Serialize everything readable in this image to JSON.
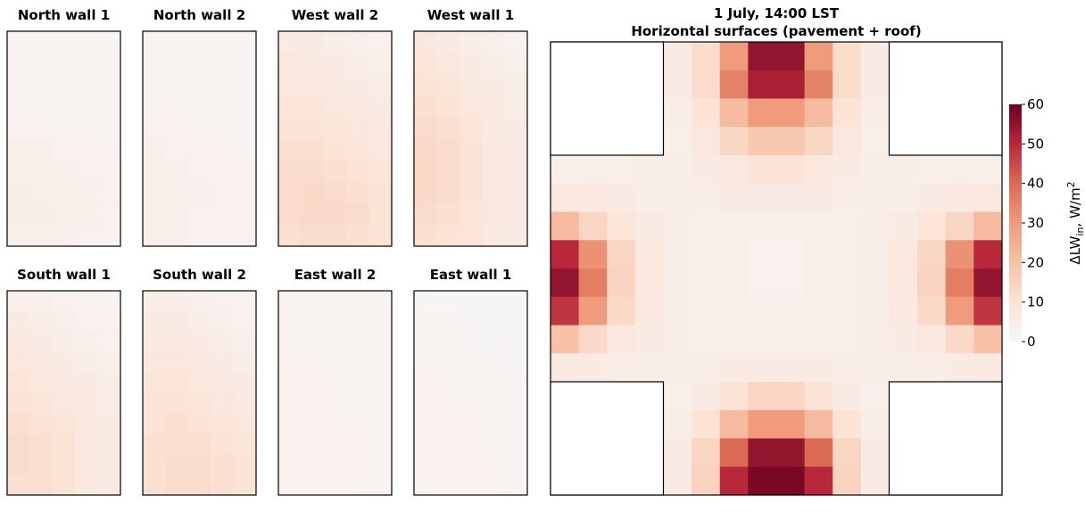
{
  "chart_data": [
    {
      "type": "heatmap",
      "title": "North wall 1",
      "values": [
        [
          2,
          2,
          2,
          2,
          2
        ],
        [
          2,
          2,
          2,
          2,
          2
        ],
        [
          2,
          2,
          2,
          2,
          2
        ],
        [
          2,
          2,
          2,
          2,
          2
        ],
        [
          2,
          2,
          2,
          2,
          2
        ],
        [
          4,
          4,
          3,
          3,
          2
        ],
        [
          4,
          4,
          4,
          3,
          3
        ],
        [
          5,
          4,
          4,
          4,
          3
        ],
        [
          5,
          5,
          4,
          4,
          3
        ],
        [
          4,
          4,
          4,
          3,
          3
        ]
      ]
    },
    {
      "type": "heatmap",
      "title": "North wall 2",
      "values": [
        [
          2,
          2,
          2,
          2,
          2
        ],
        [
          2,
          2,
          2,
          2,
          2
        ],
        [
          2,
          2,
          2,
          2,
          2
        ],
        [
          2,
          2,
          2,
          2,
          2
        ],
        [
          3,
          3,
          2,
          2,
          2
        ],
        [
          4,
          3,
          3,
          3,
          2
        ],
        [
          4,
          4,
          3,
          3,
          3
        ],
        [
          4,
          4,
          4,
          3,
          3
        ],
        [
          4,
          4,
          3,
          3,
          3
        ],
        [
          4,
          4,
          3,
          3,
          3
        ]
      ]
    },
    {
      "type": "heatmap",
      "title": "West wall 2",
      "values": [
        [
          6,
          6,
          5,
          4,
          3
        ],
        [
          8,
          7,
          6,
          5,
          4
        ],
        [
          8,
          8,
          7,
          6,
          5
        ],
        [
          9,
          9,
          8,
          7,
          6
        ],
        [
          10,
          10,
          9,
          8,
          7
        ],
        [
          11,
          11,
          10,
          9,
          8
        ],
        [
          12,
          12,
          11,
          10,
          9
        ],
        [
          12,
          13,
          12,
          11,
          10
        ],
        [
          12,
          13,
          13,
          12,
          10
        ],
        [
          11,
          12,
          12,
          11,
          10
        ]
      ]
    },
    {
      "type": "heatmap",
      "title": "West wall 1",
      "values": [
        [
          8,
          6,
          5,
          4,
          3
        ],
        [
          9,
          8,
          6,
          5,
          4
        ],
        [
          10,
          9,
          7,
          6,
          5
        ],
        [
          11,
          10,
          8,
          7,
          5
        ],
        [
          12,
          11,
          9,
          7,
          6
        ],
        [
          13,
          12,
          10,
          8,
          6
        ],
        [
          13,
          12,
          10,
          8,
          6
        ],
        [
          13,
          12,
          10,
          8,
          6
        ],
        [
          12,
          11,
          9,
          8,
          6
        ],
        [
          11,
          10,
          9,
          7,
          6
        ]
      ]
    },
    {
      "type": "heatmap",
      "title": "South wall 1",
      "values": [
        [
          4,
          4,
          3,
          3,
          2
        ],
        [
          6,
          5,
          4,
          3,
          3
        ],
        [
          7,
          6,
          5,
          4,
          3
        ],
        [
          8,
          7,
          6,
          5,
          4
        ],
        [
          9,
          8,
          7,
          6,
          5
        ],
        [
          10,
          9,
          8,
          7,
          5
        ],
        [
          11,
          10,
          9,
          7,
          6
        ],
        [
          12,
          11,
          10,
          8,
          6
        ],
        [
          12,
          11,
          10,
          8,
          6
        ],
        [
          11,
          11,
          10,
          8,
          6
        ]
      ]
    },
    {
      "type": "heatmap",
      "title": "South wall 2",
      "values": [
        [
          5,
          5,
          4,
          3,
          3
        ],
        [
          6,
          6,
          5,
          4,
          3
        ],
        [
          7,
          7,
          6,
          5,
          4
        ],
        [
          8,
          8,
          7,
          6,
          5
        ],
        [
          9,
          9,
          8,
          7,
          6
        ],
        [
          10,
          10,
          9,
          8,
          7
        ],
        [
          10,
          11,
          10,
          9,
          8
        ],
        [
          11,
          11,
          11,
          10,
          9
        ],
        [
          11,
          12,
          12,
          11,
          10
        ],
        [
          11,
          12,
          12,
          11,
          10
        ]
      ]
    },
    {
      "type": "heatmap",
      "title": "East wall 2",
      "values": [
        [
          2,
          2,
          2,
          2,
          2
        ],
        [
          2,
          2,
          2,
          2,
          2
        ],
        [
          2,
          2,
          2,
          2,
          2
        ],
        [
          3,
          2,
          2,
          2,
          2
        ],
        [
          3,
          3,
          2,
          2,
          2
        ],
        [
          3,
          3,
          3,
          2,
          2
        ],
        [
          3,
          3,
          3,
          2,
          2
        ],
        [
          3,
          3,
          3,
          3,
          2
        ],
        [
          3,
          3,
          3,
          3,
          2
        ],
        [
          3,
          3,
          3,
          3,
          2
        ]
      ]
    },
    {
      "type": "heatmap",
      "title": "East wall 1",
      "values": [
        [
          1,
          1,
          1,
          1,
          1
        ],
        [
          2,
          2,
          1,
          1,
          1
        ],
        [
          2,
          2,
          2,
          1,
          1
        ],
        [
          2,
          2,
          2,
          2,
          1
        ],
        [
          3,
          2,
          2,
          2,
          2
        ],
        [
          3,
          3,
          2,
          2,
          2
        ],
        [
          3,
          3,
          3,
          2,
          2
        ],
        [
          3,
          3,
          3,
          2,
          2
        ],
        [
          3,
          3,
          3,
          3,
          2
        ],
        [
          3,
          3,
          3,
          3,
          2
        ]
      ]
    },
    {
      "type": "heatmap",
      "title": "1 July, 14:00 LST",
      "subtitle": "Horizontal surfaces (pavement + roof)",
      "values": [
        [
          null,
          null,
          null,
          null,
          6,
          12,
          30,
          55,
          55,
          30,
          12,
          6,
          null,
          null,
          null,
          null
        ],
        [
          null,
          null,
          null,
          null,
          6,
          12,
          35,
          52,
          52,
          35,
          12,
          6,
          null,
          null,
          null,
          null
        ],
        [
          null,
          null,
          null,
          null,
          5,
          10,
          22,
          30,
          30,
          22,
          10,
          5,
          null,
          null,
          null,
          null
        ],
        [
          null,
          null,
          null,
          null,
          4,
          8,
          14,
          18,
          18,
          14,
          8,
          4,
          null,
          null,
          null,
          null
        ],
        [
          4,
          4,
          4,
          5,
          5,
          6,
          8,
          10,
          10,
          8,
          6,
          5,
          5,
          4,
          4,
          4
        ],
        [
          8,
          7,
          6,
          5,
          5,
          5,
          6,
          6,
          6,
          6,
          5,
          5,
          5,
          6,
          7,
          8
        ],
        [
          22,
          14,
          9,
          6,
          5,
          4,
          4,
          4,
          4,
          4,
          4,
          5,
          6,
          9,
          14,
          22
        ],
        [
          50,
          32,
          14,
          8,
          5,
          4,
          4,
          3,
          3,
          4,
          4,
          5,
          8,
          14,
          32,
          50
        ],
        [
          55,
          36,
          15,
          8,
          5,
          4,
          4,
          3,
          3,
          4,
          4,
          5,
          8,
          15,
          36,
          55
        ],
        [
          48,
          30,
          13,
          7,
          5,
          4,
          4,
          4,
          4,
          4,
          4,
          5,
          7,
          13,
          30,
          48
        ],
        [
          20,
          13,
          8,
          6,
          5,
          4,
          4,
          4,
          4,
          4,
          4,
          5,
          6,
          8,
          13,
          20
        ],
        [
          7,
          6,
          5,
          5,
          5,
          5,
          6,
          6,
          6,
          6,
          5,
          5,
          5,
          5,
          6,
          7
        ],
        [
          null,
          null,
          null,
          null,
          4,
          6,
          10,
          14,
          14,
          10,
          6,
          4,
          null,
          null,
          null,
          null
        ],
        [
          null,
          null,
          null,
          null,
          5,
          10,
          22,
          30,
          30,
          22,
          10,
          5,
          null,
          null,
          null,
          null
        ],
        [
          null,
          null,
          null,
          null,
          6,
          14,
          40,
          55,
          55,
          40,
          14,
          6,
          null,
          null,
          null,
          null
        ],
        [
          null,
          null,
          null,
          null,
          6,
          15,
          50,
          58,
          58,
          50,
          15,
          6,
          null,
          null,
          null,
          null
        ]
      ],
      "clim": [
        0,
        60
      ],
      "cticks": [
        0,
        10,
        20,
        30,
        40,
        50,
        60
      ],
      "colormap": [
        "#f7f7f7",
        "#fbe3d6",
        "#f7c2a8",
        "#ef9b7c",
        "#db6a55",
        "#b8283a",
        "#6b0020"
      ],
      "colorbar_label": {
        "base": "ΔLW",
        "sub": "in",
        "rest": ", W/m",
        "sup": "2"
      }
    }
  ]
}
